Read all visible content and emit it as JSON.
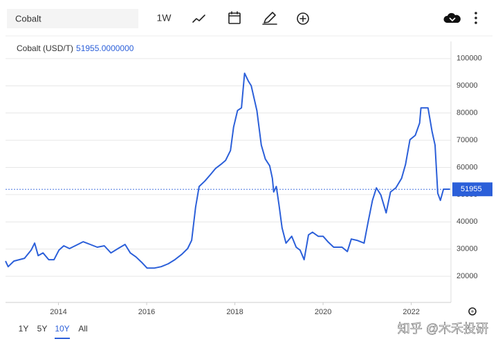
{
  "toolbar": {
    "search": "Cobalt",
    "interval": "1W"
  },
  "chart_data": {
    "type": "line",
    "x": [
      2012.8,
      2012.86,
      2012.99,
      2013.23,
      2013.38,
      2013.46,
      2013.54,
      2013.65,
      2013.78,
      2013.9,
      2014.01,
      2014.12,
      2014.25,
      2014.44,
      2014.56,
      2014.72,
      2014.88,
      2015.04,
      2015.19,
      2015.35,
      2015.51,
      2015.63,
      2015.76,
      2015.89,
      2016.01,
      2016.17,
      2016.33,
      2016.49,
      2016.64,
      2016.8,
      2016.93,
      2017.02,
      2017.11,
      2017.19,
      2017.32,
      2017.43,
      2017.56,
      2017.68,
      2017.79,
      2017.9,
      2017.97,
      2018.06,
      2018.15,
      2018.22,
      2018.31,
      2018.37,
      2018.5,
      2018.6,
      2018.69,
      2018.79,
      2018.85,
      2018.88,
      2018.94,
      2019.0,
      2019.07,
      2019.16,
      2019.29,
      2019.39,
      2019.48,
      2019.57,
      2019.67,
      2019.76,
      2019.89,
      2020.0,
      2020.11,
      2020.24,
      2020.43,
      2020.55,
      2020.64,
      2020.77,
      2020.93,
      2021.02,
      2021.12,
      2021.21,
      2021.31,
      2021.43,
      2021.53,
      2021.65,
      2021.78,
      2021.87,
      2021.97,
      2022.09,
      2022.19,
      2022.22,
      2022.38,
      2022.47,
      2022.54,
      2022.6,
      2022.66,
      2022.73,
      2022.88
    ],
    "series": [
      {
        "name": "Cobalt (USD/T)",
        "color": "#2b5fd9",
        "values": [
          25600,
          23550,
          25600,
          26600,
          29600,
          32200,
          27600,
          28600,
          26100,
          26100,
          29600,
          31200,
          30200,
          31700,
          32700,
          31700,
          30700,
          31200,
          28600,
          30200,
          31700,
          28600,
          27100,
          25100,
          23000,
          23000,
          23550,
          24600,
          26100,
          28100,
          30200,
          33200,
          45400,
          53000,
          55000,
          57050,
          59600,
          61100,
          62600,
          66200,
          74800,
          80900,
          81900,
          94600,
          91600,
          90050,
          80900,
          68200,
          63100,
          60600,
          56000,
          51000,
          53000,
          46400,
          37800,
          32200,
          34700,
          30700,
          29600,
          26100,
          35200,
          36200,
          34700,
          34700,
          32700,
          30700,
          30700,
          29100,
          33700,
          33200,
          32200,
          39800,
          47900,
          52500,
          49900,
          43300,
          51000,
          52500,
          56000,
          61100,
          70200,
          71800,
          76300,
          81900,
          81900,
          73300,
          68200,
          50500,
          47900,
          52000,
          52000
        ]
      }
    ],
    "last_value": {
      "value": 51955,
      "label": "51955.0000000"
    },
    "xlim": [
      2012.8,
      2022.9
    ],
    "xticks": [
      2014,
      2016,
      2018,
      2020,
      2022
    ],
    "ylim": [
      10400,
      106300
    ],
    "yticks": [
      20000,
      30000,
      40000,
      50000,
      60000,
      70000,
      80000,
      90000,
      100000
    ],
    "grid": true
  },
  "ranges": [
    "1Y",
    "5Y",
    "10Y",
    "All"
  ],
  "selected_range": "10Y",
  "watermark": "知乎 @木禾投研"
}
